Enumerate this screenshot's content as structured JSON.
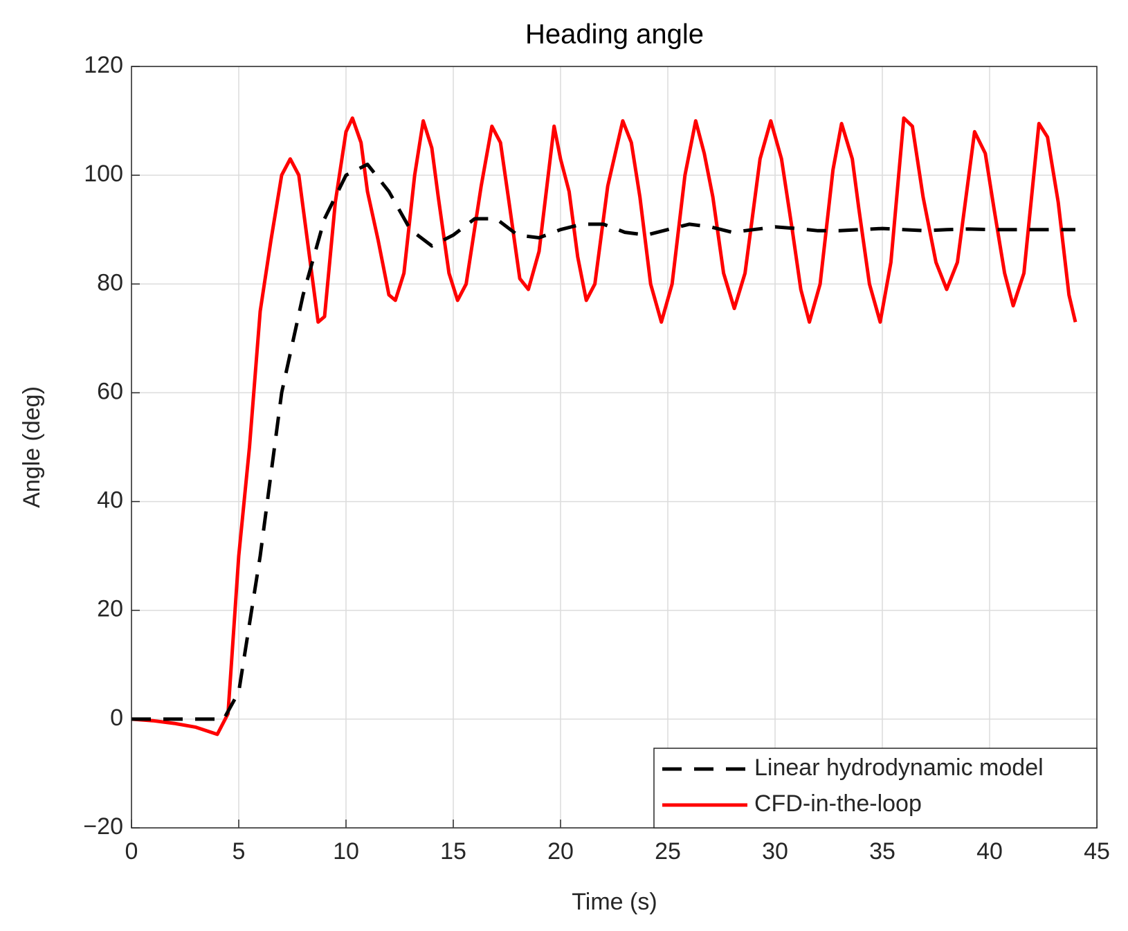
{
  "chart_data": {
    "type": "line",
    "title": "Heading angle",
    "xlabel": "Time (s)",
    "ylabel": "Angle (deg)",
    "xlim": [
      0,
      45
    ],
    "xticks": [
      0,
      5,
      10,
      15,
      20,
      25,
      30,
      35,
      40,
      45
    ],
    "ylim": [
      -20,
      120
    ],
    "yticks": [
      {
        "value": -20,
        "label": "−20"
      },
      0,
      20,
      40,
      60,
      80,
      100,
      120
    ],
    "grid": true,
    "legend": "lower right",
    "series": [
      {
        "name": "Linear hydrodynamic model",
        "color": "#000000",
        "dash": true,
        "x": [
          0,
          1,
          2,
          3,
          4,
          4.3,
          5,
          6,
          7,
          8,
          9,
          10,
          11,
          12,
          13,
          14,
          15,
          16,
          17,
          18,
          19,
          20,
          21,
          22,
          23,
          24,
          25,
          26,
          27,
          28,
          29,
          30,
          31,
          32,
          33,
          34,
          35,
          36,
          37,
          38,
          39,
          40,
          41,
          42,
          43,
          44
        ],
        "values": [
          0,
          0,
          0,
          0,
          0,
          0,
          5,
          30,
          60,
          78,
          92,
          100,
          102,
          97,
          90,
          87,
          89,
          92,
          92,
          89,
          88.5,
          90,
          91,
          91,
          89.5,
          89,
          90,
          91,
          90.5,
          89.5,
          90,
          90.5,
          90.2,
          89.8,
          89.8,
          90,
          90.2,
          90,
          89.8,
          90,
          90.1,
          90,
          90,
          90,
          90,
          90
        ]
      },
      {
        "name": "CFD-in-the-loop",
        "color": "#ff0000",
        "dash": false,
        "x": [
          0,
          1,
          2,
          3,
          4,
          4.5,
          5,
          5.5,
          6,
          6.5,
          7,
          7.4,
          7.8,
          8.3,
          8.7,
          9,
          9.5,
          10,
          10.3,
          10.7,
          11,
          11.5,
          12,
          12.3,
          12.7,
          13.2,
          13.6,
          14,
          14.3,
          14.8,
          15.2,
          15.6,
          16.3,
          16.8,
          17.2,
          17.6,
          18.1,
          18.5,
          19,
          19.7,
          20,
          20.4,
          20.8,
          21.2,
          21.6,
          22.2,
          22.9,
          23.3,
          23.7,
          24.2,
          24.7,
          25.2,
          25.8,
          26.3,
          26.7,
          27.1,
          27.6,
          28.1,
          28.6,
          29.3,
          29.8,
          30.3,
          30.8,
          31.2,
          31.6,
          32.1,
          32.7,
          33.1,
          33.6,
          33.9,
          34.4,
          34.9,
          35.4,
          36,
          36.4,
          36.9,
          37.5,
          38,
          38.5,
          39.3,
          39.8,
          40.2,
          40.7,
          41.1,
          41.6,
          42.3,
          42.7,
          43.2,
          43.7,
          44
        ],
        "values": [
          0,
          -0.3,
          -0.8,
          -1.5,
          -2.8,
          1,
          30,
          50,
          75,
          88,
          100,
          103,
          100,
          85,
          73,
          74,
          95,
          108,
          110.5,
          106,
          97,
          88,
          78,
          77,
          82,
          100,
          110,
          105,
          96,
          82,
          77,
          80,
          98,
          109,
          106,
          95,
          81,
          79,
          86,
          109,
          103,
          97,
          85,
          77,
          80,
          98,
          110,
          106,
          96,
          80,
          73,
          80,
          100,
          110,
          104,
          96,
          82,
          75.5,
          82,
          103,
          110,
          103,
          90,
          79,
          73,
          80,
          101,
          109.5,
          103,
          94,
          80,
          73,
          84,
          110.5,
          109,
          96,
          84,
          79,
          84,
          108,
          104,
          94,
          82,
          76,
          82,
          109.5,
          107,
          95,
          78,
          73
        ]
      }
    ]
  }
}
